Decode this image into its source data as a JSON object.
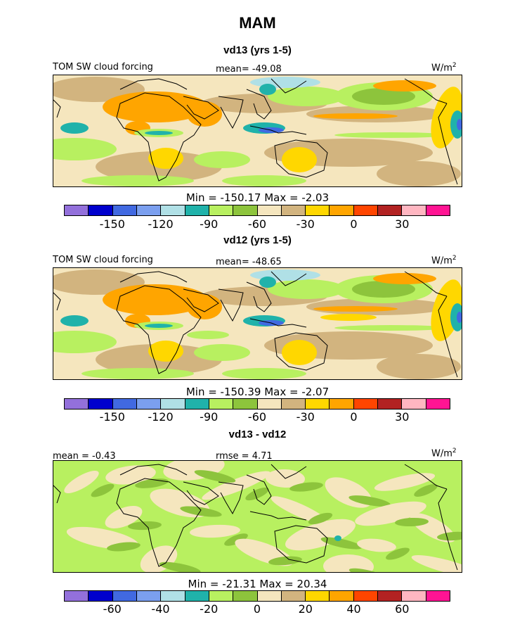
{
  "title": "MAM",
  "panels": [
    {
      "subtitle": "vd13 (yrs 1-5)",
      "left_label": "TOM SW cloud forcing",
      "center_label": "mean= -49.08",
      "units": "W/m",
      "units_sup": "2",
      "minmax": "Min = -150.17 Max = -2.03",
      "ticks": [
        "-150",
        "-120",
        "-90",
        "-60",
        "-30",
        "0",
        "30"
      ]
    },
    {
      "subtitle": "vd12 (yrs 1-5)",
      "left_label": "TOM SW cloud forcing",
      "center_label": "mean= -48.65",
      "units": "W/m",
      "units_sup": "2",
      "minmax": "Min = -150.39 Max = -2.07",
      "ticks": [
        "-150",
        "-120",
        "-90",
        "-60",
        "-30",
        "0",
        "30"
      ]
    },
    {
      "subtitle": "vd13 - vd12",
      "left_label": "mean = -0.43",
      "center_label": "rmse = 4.71",
      "units": "W/m",
      "units_sup": "2",
      "minmax": "Min = -21.31 Max = 20.34",
      "ticks": [
        "-60",
        "-40",
        "-20",
        "0",
        "20",
        "40",
        "60"
      ]
    }
  ],
  "colorbar_colors": [
    "#9370DB",
    "#0000CD",
    "#4169E1",
    "#7B9FEF",
    "#B0E0E6",
    "#20B2AA",
    "#B8F060",
    "#8DC43C",
    "#F5E6BE",
    "#D2B47F",
    "#FFD700",
    "#FFA500",
    "#FF4500",
    "#B22222",
    "#FFB6C1",
    "#FF1493"
  ],
  "map_colors": {
    "ocean_base": "#F5E6BE",
    "tan": "#D2B47F",
    "yellow": "#FFD700",
    "orange": "#FFA500",
    "light_green": "#B8F060",
    "green": "#8DC43C",
    "teal": "#20B2AA",
    "light_blue": "#B0E0E6",
    "blue": "#4169E1",
    "coast": "#000000"
  }
}
